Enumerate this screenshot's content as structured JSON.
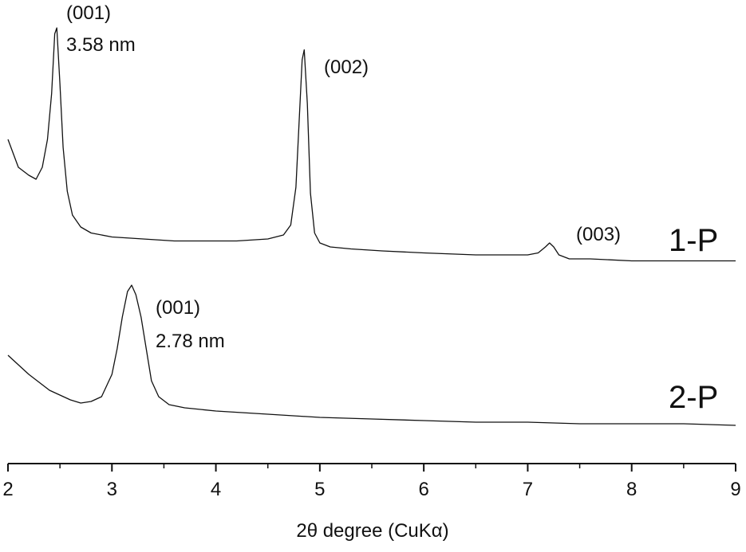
{
  "chart_data": {
    "type": "line",
    "title": "",
    "xlabel": "2θ degree (CuKα)",
    "ylabel": "",
    "xlim": [
      2,
      9
    ],
    "xticks": [
      2,
      3,
      4,
      5,
      6,
      7,
      8,
      9
    ],
    "y_axis_shown": false,
    "grid": false,
    "series": [
      {
        "name": "1-P",
        "x": [
          2.0,
          2.1,
          2.2,
          2.27,
          2.33,
          2.38,
          2.42,
          2.45,
          2.47,
          2.5,
          2.53,
          2.57,
          2.62,
          2.7,
          2.8,
          3.0,
          3.3,
          3.6,
          3.9,
          4.2,
          4.5,
          4.65,
          4.72,
          4.77,
          4.8,
          4.83,
          4.85,
          4.88,
          4.91,
          4.95,
          5.0,
          5.1,
          5.3,
          5.6,
          6.0,
          6.5,
          7.0,
          7.1,
          7.17,
          7.21,
          7.25,
          7.3,
          7.4,
          7.6,
          8.0,
          8.5,
          9.0
        ],
        "y": [
          0.72,
          0.58,
          0.54,
          0.52,
          0.58,
          0.72,
          0.95,
          1.25,
          1.28,
          1.0,
          0.68,
          0.46,
          0.34,
          0.28,
          0.25,
          0.23,
          0.22,
          0.21,
          0.21,
          0.21,
          0.22,
          0.24,
          0.29,
          0.48,
          0.8,
          1.12,
          1.17,
          0.9,
          0.45,
          0.25,
          0.2,
          0.18,
          0.17,
          0.16,
          0.15,
          0.14,
          0.14,
          0.15,
          0.18,
          0.2,
          0.18,
          0.14,
          0.12,
          0.12,
          0.11,
          0.11,
          0.11
        ]
      },
      {
        "name": "2-P",
        "x": [
          2.0,
          2.2,
          2.4,
          2.6,
          2.7,
          2.8,
          2.9,
          3.0,
          3.05,
          3.1,
          3.15,
          3.19,
          3.23,
          3.28,
          3.33,
          3.38,
          3.45,
          3.55,
          3.7,
          4.0,
          4.5,
          5.0,
          5.5,
          6.0,
          6.5,
          7.0,
          7.5,
          8.0,
          8.5,
          9.0
        ],
        "y": [
          0.26,
          0.2,
          0.15,
          0.12,
          0.11,
          0.115,
          0.13,
          0.2,
          0.28,
          0.38,
          0.46,
          0.48,
          0.45,
          0.38,
          0.28,
          0.18,
          0.13,
          0.105,
          0.095,
          0.085,
          0.075,
          0.065,
          0.06,
          0.055,
          0.05,
          0.05,
          0.045,
          0.045,
          0.045,
          0.04
        ]
      }
    ],
    "series_labels": [
      "1-P",
      "2-P"
    ],
    "annotations": [
      {
        "id": "ann-1p-001",
        "lines": [
          "(001)",
          "3.58 nm"
        ],
        "x": 2.47,
        "series": "1-P"
      },
      {
        "id": "ann-1p-002",
        "lines": [
          "(002)"
        ],
        "x": 4.85,
        "series": "1-P"
      },
      {
        "id": "ann-1p-003",
        "lines": [
          "(003)"
        ],
        "x": 7.21,
        "series": "1-P"
      },
      {
        "id": "ann-2p-001",
        "lines": [
          "(001)",
          "2.78 nm"
        ],
        "x": 3.19,
        "series": "2-P"
      }
    ]
  }
}
